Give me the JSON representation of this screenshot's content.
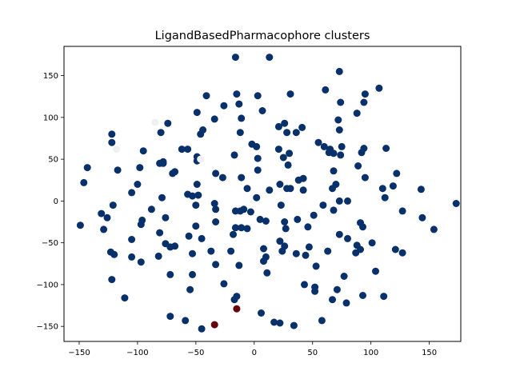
{
  "chart_data": {
    "type": "scatter",
    "title": "LigandBasedPharmacophore clusters",
    "xlabel": "",
    "ylabel": "",
    "xlim": [
      -163,
      177
    ],
    "ylim": [
      -168,
      185
    ],
    "xticks": [
      -150,
      -100,
      -50,
      0,
      50,
      100,
      150
    ],
    "yticks": [
      -150,
      -100,
      -50,
      0,
      50,
      100,
      150
    ],
    "grid": false,
    "colors": {
      "main_cluster": "#08306b",
      "outlier_cluster": "#67000d",
      "faint_points": "#f0f0f0"
    },
    "points": [
      {
        "x": -16,
        "y": 172,
        "c": "main_cluster"
      },
      {
        "x": 13,
        "y": 172,
        "c": "main_cluster"
      },
      {
        "x": 73,
        "y": 155,
        "c": "main_cluster"
      },
      {
        "x": 107,
        "y": 135,
        "c": "main_cluster"
      },
      {
        "x": 61,
        "y": 133,
        "c": "main_cluster"
      },
      {
        "x": 95,
        "y": 128,
        "c": "main_cluster"
      },
      {
        "x": 31,
        "y": 128,
        "c": "main_cluster"
      },
      {
        "x": -41,
        "y": 126,
        "c": "main_cluster"
      },
      {
        "x": -15,
        "y": 128,
        "c": "main_cluster"
      },
      {
        "x": 3,
        "y": 126,
        "c": "main_cluster"
      },
      {
        "x": 94,
        "y": 118,
        "c": "main_cluster"
      },
      {
        "x": -26,
        "y": 114,
        "c": "main_cluster"
      },
      {
        "x": -13,
        "y": 116,
        "c": "main_cluster"
      },
      {
        "x": 74,
        "y": 118,
        "c": "main_cluster"
      },
      {
        "x": -49,
        "y": 106,
        "c": "main_cluster"
      },
      {
        "x": 7,
        "y": 108,
        "c": "main_cluster"
      },
      {
        "x": 88,
        "y": 105,
        "c": "main_cluster"
      },
      {
        "x": -34,
        "y": 98,
        "c": "main_cluster"
      },
      {
        "x": -11,
        "y": 99,
        "c": "main_cluster"
      },
      {
        "x": 72,
        "y": 97,
        "c": "main_cluster"
      },
      {
        "x": -74,
        "y": 93,
        "c": "main_cluster"
      },
      {
        "x": 26,
        "y": 93,
        "c": "main_cluster"
      },
      {
        "x": 21,
        "y": 89,
        "c": "main_cluster"
      },
      {
        "x": 41,
        "y": 88,
        "c": "main_cluster"
      },
      {
        "x": -44,
        "y": 85,
        "c": "main_cluster"
      },
      {
        "x": -80,
        "y": 82,
        "c": "main_cluster"
      },
      {
        "x": -12,
        "y": 82,
        "c": "main_cluster"
      },
      {
        "x": 28,
        "y": 82,
        "c": "main_cluster"
      },
      {
        "x": 36,
        "y": 82,
        "c": "main_cluster"
      },
      {
        "x": 73,
        "y": 85,
        "c": "main_cluster"
      },
      {
        "x": -122,
        "y": 80,
        "c": "main_cluster"
      },
      {
        "x": -46,
        "y": 80,
        "c": "main_cluster"
      },
      {
        "x": -122,
        "y": 70,
        "c": "main_cluster"
      },
      {
        "x": 55,
        "y": 70,
        "c": "main_cluster"
      },
      {
        "x": -2,
        "y": 68,
        "c": "main_cluster"
      },
      {
        "x": 2,
        "y": 65,
        "c": "main_cluster"
      },
      {
        "x": 60,
        "y": 65,
        "c": "main_cluster"
      },
      {
        "x": 75,
        "y": 65,
        "c": "main_cluster"
      },
      {
        "x": 113,
        "y": 63,
        "c": "main_cluster"
      },
      {
        "x": -95,
        "y": 60,
        "c": "main_cluster"
      },
      {
        "x": -62,
        "y": 62,
        "c": "main_cluster"
      },
      {
        "x": -57,
        "y": 62,
        "c": "main_cluster"
      },
      {
        "x": 21,
        "y": 62,
        "c": "main_cluster"
      },
      {
        "x": 65,
        "y": 62,
        "c": "main_cluster"
      },
      {
        "x": 94,
        "y": 63,
        "c": "main_cluster"
      },
      {
        "x": 64,
        "y": 58,
        "c": "main_cluster"
      },
      {
        "x": 68,
        "y": 57,
        "c": "main_cluster"
      },
      {
        "x": 92,
        "y": 58,
        "c": "main_cluster"
      },
      {
        "x": -17,
        "y": 55,
        "c": "main_cluster"
      },
      {
        "x": 30,
        "y": 57,
        "c": "main_cluster"
      },
      {
        "x": -49,
        "y": 53,
        "c": "main_cluster"
      },
      {
        "x": 74,
        "y": 55,
        "c": "main_cluster"
      },
      {
        "x": 3,
        "y": 51,
        "c": "main_cluster"
      },
      {
        "x": 25,
        "y": 52,
        "c": "main_cluster"
      },
      {
        "x": -49,
        "y": 48,
        "c": "main_cluster"
      },
      {
        "x": -81,
        "y": 45,
        "c": "main_cluster"
      },
      {
        "x": -78,
        "y": 45,
        "c": "main_cluster"
      },
      {
        "x": -78,
        "y": 47,
        "c": "main_cluster"
      },
      {
        "x": -143,
        "y": 40,
        "c": "main_cluster"
      },
      {
        "x": -98,
        "y": 40,
        "c": "main_cluster"
      },
      {
        "x": 29,
        "y": 43,
        "c": "main_cluster"
      },
      {
        "x": 89,
        "y": 42,
        "c": "main_cluster"
      },
      {
        "x": -117,
        "y": 37,
        "c": "main_cluster"
      },
      {
        "x": 3,
        "y": 37,
        "c": "main_cluster"
      },
      {
        "x": -70,
        "y": 33,
        "c": "main_cluster"
      },
      {
        "x": -68,
        "y": 35,
        "c": "main_cluster"
      },
      {
        "x": -33,
        "y": 33,
        "c": "main_cluster"
      },
      {
        "x": 68,
        "y": 36,
        "c": "main_cluster"
      },
      {
        "x": 122,
        "y": 33,
        "c": "main_cluster"
      },
      {
        "x": -11,
        "y": 28,
        "c": "main_cluster"
      },
      {
        "x": -27,
        "y": 28,
        "c": "main_cluster"
      },
      {
        "x": 38,
        "y": 25,
        "c": "main_cluster"
      },
      {
        "x": 42,
        "y": 27,
        "c": "main_cluster"
      },
      {
        "x": 95,
        "y": 28,
        "c": "main_cluster"
      },
      {
        "x": -146,
        "y": 22,
        "c": "main_cluster"
      },
      {
        "x": -49,
        "y": 20,
        "c": "main_cluster"
      },
      {
        "x": -100,
        "y": 20,
        "c": "main_cluster"
      },
      {
        "x": 22,
        "y": 20,
        "c": "main_cluster"
      },
      {
        "x": 70,
        "y": 20,
        "c": "main_cluster"
      },
      {
        "x": 119,
        "y": 18,
        "c": "main_cluster"
      },
      {
        "x": -6,
        "y": 15,
        "c": "main_cluster"
      },
      {
        "x": 28,
        "y": 15,
        "c": "main_cluster"
      },
      {
        "x": 31,
        "y": 15,
        "c": "main_cluster"
      },
      {
        "x": 67,
        "y": 15,
        "c": "main_cluster"
      },
      {
        "x": 110,
        "y": 15,
        "c": "main_cluster"
      },
      {
        "x": 143,
        "y": 14,
        "c": "main_cluster"
      },
      {
        "x": 13,
        "y": 13,
        "c": "main_cluster"
      },
      {
        "x": 42,
        "y": 13,
        "c": "main_cluster"
      },
      {
        "x": -105,
        "y": 10,
        "c": "main_cluster"
      },
      {
        "x": -57,
        "y": 8,
        "c": "main_cluster"
      },
      {
        "x": -53,
        "y": 6,
        "c": "main_cluster"
      },
      {
        "x": -48,
        "y": 7,
        "c": "main_cluster"
      },
      {
        "x": -79,
        "y": 4,
        "c": "main_cluster"
      },
      {
        "x": 2,
        "y": 4,
        "c": "main_cluster"
      },
      {
        "x": 112,
        "y": 4,
        "c": "main_cluster"
      },
      {
        "x": 73,
        "y": 0,
        "c": "main_cluster"
      },
      {
        "x": 80,
        "y": 0,
        "c": "main_cluster"
      },
      {
        "x": 173,
        "y": -3,
        "c": "main_cluster"
      },
      {
        "x": -121,
        "y": -5,
        "c": "main_cluster"
      },
      {
        "x": -34,
        "y": -3,
        "c": "main_cluster"
      },
      {
        "x": -50,
        "y": -5,
        "c": "main_cluster"
      },
      {
        "x": 23,
        "y": -5,
        "c": "main_cluster"
      },
      {
        "x": 59,
        "y": -5,
        "c": "main_cluster"
      },
      {
        "x": -33,
        "y": -10,
        "c": "main_cluster"
      },
      {
        "x": -88,
        "y": -10,
        "c": "main_cluster"
      },
      {
        "x": -9,
        "y": -10,
        "c": "main_cluster"
      },
      {
        "x": -16,
        "y": -12,
        "c": "main_cluster"
      },
      {
        "x": -12,
        "y": -12,
        "c": "main_cluster"
      },
      {
        "x": -3,
        "y": -13,
        "c": "main_cluster"
      },
      {
        "x": 68,
        "y": -11,
        "c": "main_cluster"
      },
      {
        "x": 127,
        "y": -12,
        "c": "main_cluster"
      },
      {
        "x": -131,
        "y": -15,
        "c": "main_cluster"
      },
      {
        "x": -76,
        "y": -20,
        "c": "main_cluster"
      },
      {
        "x": 51,
        "y": -17,
        "c": "main_cluster"
      },
      {
        "x": 144,
        "y": -20,
        "c": "main_cluster"
      },
      {
        "x": -126,
        "y": -20,
        "c": "main_cluster"
      },
      {
        "x": -96,
        "y": -23,
        "c": "main_cluster"
      },
      {
        "x": 5,
        "y": -22,
        "c": "main_cluster"
      },
      {
        "x": 10,
        "y": -24,
        "c": "main_cluster"
      },
      {
        "x": 26,
        "y": -25,
        "c": "main_cluster"
      },
      {
        "x": 37,
        "y": -22,
        "c": "main_cluster"
      },
      {
        "x": 91,
        "y": -26,
        "c": "main_cluster"
      },
      {
        "x": -33,
        "y": -25,
        "c": "main_cluster"
      },
      {
        "x": -97,
        "y": -28,
        "c": "main_cluster"
      },
      {
        "x": -149,
        "y": -29,
        "c": "main_cluster"
      },
      {
        "x": -11,
        "y": -32,
        "c": "main_cluster"
      },
      {
        "x": -50,
        "y": -30,
        "c": "main_cluster"
      },
      {
        "x": -16,
        "y": -32,
        "c": "main_cluster"
      },
      {
        "x": -6,
        "y": -33,
        "c": "main_cluster"
      },
      {
        "x": 27,
        "y": -33,
        "c": "main_cluster"
      },
      {
        "x": 46,
        "y": -31,
        "c": "main_cluster"
      },
      {
        "x": 93,
        "y": -31,
        "c": "main_cluster"
      },
      {
        "x": 154,
        "y": -34,
        "c": "main_cluster"
      },
      {
        "x": -129,
        "y": -34,
        "c": "main_cluster"
      },
      {
        "x": -81,
        "y": -38,
        "c": "main_cluster"
      },
      {
        "x": -56,
        "y": -42,
        "c": "main_cluster"
      },
      {
        "x": -18,
        "y": -40,
        "c": "main_cluster"
      },
      {
        "x": 73,
        "y": -40,
        "c": "main_cluster"
      },
      {
        "x": -105,
        "y": -46,
        "c": "main_cluster"
      },
      {
        "x": -45,
        "y": -45,
        "c": "main_cluster"
      },
      {
        "x": 80,
        "y": -45,
        "c": "main_cluster"
      },
      {
        "x": 22,
        "y": -48,
        "c": "main_cluster"
      },
      {
        "x": 101,
        "y": -50,
        "c": "main_cluster"
      },
      {
        "x": -76,
        "y": -51,
        "c": "main_cluster"
      },
      {
        "x": -68,
        "y": -54,
        "c": "main_cluster"
      },
      {
        "x": 26,
        "y": -54,
        "c": "main_cluster"
      },
      {
        "x": -72,
        "y": -55,
        "c": "main_cluster"
      },
      {
        "x": 88,
        "y": -53,
        "c": "main_cluster"
      },
      {
        "x": 47,
        "y": -55,
        "c": "main_cluster"
      },
      {
        "x": 8,
        "y": -57,
        "c": "main_cluster"
      },
      {
        "x": 91,
        "y": -58,
        "c": "main_cluster"
      },
      {
        "x": 121,
        "y": -58,
        "c": "main_cluster"
      },
      {
        "x": -37,
        "y": -60,
        "c": "main_cluster"
      },
      {
        "x": -20,
        "y": -60,
        "c": "main_cluster"
      },
      {
        "x": 24,
        "y": -60,
        "c": "main_cluster"
      },
      {
        "x": 63,
        "y": -60,
        "c": "main_cluster"
      },
      {
        "x": 87,
        "y": -62,
        "c": "main_cluster"
      },
      {
        "x": 127,
        "y": -62,
        "c": "main_cluster"
      },
      {
        "x": -123,
        "y": -61,
        "c": "main_cluster"
      },
      {
        "x": -53,
        "y": -63,
        "c": "main_cluster"
      },
      {
        "x": 36,
        "y": -63,
        "c": "main_cluster"
      },
      {
        "x": -120,
        "y": -64,
        "c": "main_cluster"
      },
      {
        "x": 44,
        "y": -65,
        "c": "main_cluster"
      },
      {
        "x": -82,
        "y": -66,
        "c": "main_cluster"
      },
      {
        "x": -105,
        "y": -67,
        "c": "main_cluster"
      },
      {
        "x": 10,
        "y": -67,
        "c": "main_cluster"
      },
      {
        "x": -97,
        "y": -73,
        "c": "main_cluster"
      },
      {
        "x": 8,
        "y": -72,
        "c": "main_cluster"
      },
      {
        "x": -33,
        "y": -76,
        "c": "main_cluster"
      },
      {
        "x": -13,
        "y": -77,
        "c": "main_cluster"
      },
      {
        "x": 53,
        "y": -78,
        "c": "main_cluster"
      },
      {
        "x": 104,
        "y": -84,
        "c": "main_cluster"
      },
      {
        "x": 11,
        "y": -86,
        "c": "main_cluster"
      },
      {
        "x": -72,
        "y": -88,
        "c": "main_cluster"
      },
      {
        "x": -53,
        "y": -88,
        "c": "main_cluster"
      },
      {
        "x": 77,
        "y": -90,
        "c": "main_cluster"
      },
      {
        "x": -122,
        "y": -94,
        "c": "main_cluster"
      },
      {
        "x": -26,
        "y": -99,
        "c": "main_cluster"
      },
      {
        "x": 43,
        "y": -100,
        "c": "main_cluster"
      },
      {
        "x": 52,
        "y": -103,
        "c": "main_cluster"
      },
      {
        "x": -55,
        "y": -106,
        "c": "main_cluster"
      },
      {
        "x": 52,
        "y": -108,
        "c": "main_cluster"
      },
      {
        "x": 71,
        "y": -106,
        "c": "main_cluster"
      },
      {
        "x": 93,
        "y": -113,
        "c": "main_cluster"
      },
      {
        "x": -15,
        "y": -114,
        "c": "main_cluster"
      },
      {
        "x": 111,
        "y": -114,
        "c": "main_cluster"
      },
      {
        "x": -111,
        "y": -116,
        "c": "main_cluster"
      },
      {
        "x": -17,
        "y": -118,
        "c": "main_cluster"
      },
      {
        "x": 67,
        "y": -118,
        "c": "main_cluster"
      },
      {
        "x": 79,
        "y": -122,
        "c": "main_cluster"
      },
      {
        "x": 6,
        "y": -134,
        "c": "main_cluster"
      },
      {
        "x": -72,
        "y": -138,
        "c": "main_cluster"
      },
      {
        "x": -59,
        "y": -143,
        "c": "main_cluster"
      },
      {
        "x": 58,
        "y": -143,
        "c": "main_cluster"
      },
      {
        "x": 17,
        "y": -145,
        "c": "main_cluster"
      },
      {
        "x": 22,
        "y": -146,
        "c": "main_cluster"
      },
      {
        "x": 34,
        "y": -149,
        "c": "main_cluster"
      },
      {
        "x": -45,
        "y": -153,
        "c": "main_cluster"
      },
      {
        "x": -15,
        "y": -129,
        "c": "outlier_cluster"
      },
      {
        "x": -34,
        "y": -148,
        "c": "outlier_cluster"
      },
      {
        "x": -85,
        "y": 94,
        "c": "faint_points"
      },
      {
        "x": -118,
        "y": 62,
        "c": "faint_points"
      },
      {
        "x": -46,
        "y": 50,
        "c": "faint_points"
      }
    ]
  }
}
